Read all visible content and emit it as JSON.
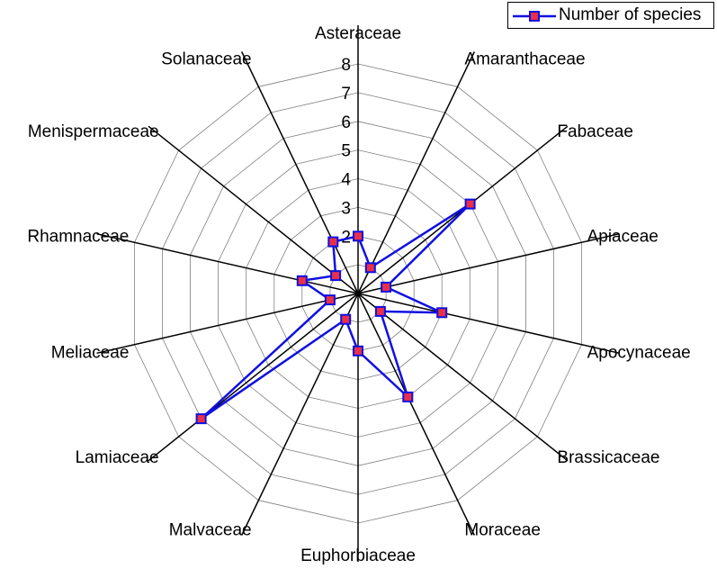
{
  "chart_data": {
    "type": "radar",
    "title": "",
    "categories": [
      "Asteraceae",
      "Amaranthaceae",
      "Fabaceae",
      "Apiaceae",
      "Apocynaceae",
      "Brassicaceae",
      "Moraceae",
      "Euphorbiaceae",
      "Malvaceae",
      "Lamiaceae",
      "Meliaceae",
      "Rhamnaceae",
      "Menispermaceae",
      "Solanaceae"
    ],
    "series": [
      {
        "name": "Number of species",
        "values": [
          2,
          1,
          5,
          1,
          3,
          1,
          4,
          2,
          1,
          7,
          1,
          2,
          1,
          2
        ]
      }
    ],
    "radial_ticks": [
      "2",
      "3",
      "4",
      "5",
      "6",
      "7",
      "8"
    ],
    "rlim": [
      1,
      8
    ],
    "grid": true,
    "legend": "top-right",
    "colors": {
      "line": "#1010e0",
      "marker_fill": "#e8304a",
      "marker_edge": "#1010e0",
      "grid": "#808080",
      "axis": "#000000"
    }
  }
}
